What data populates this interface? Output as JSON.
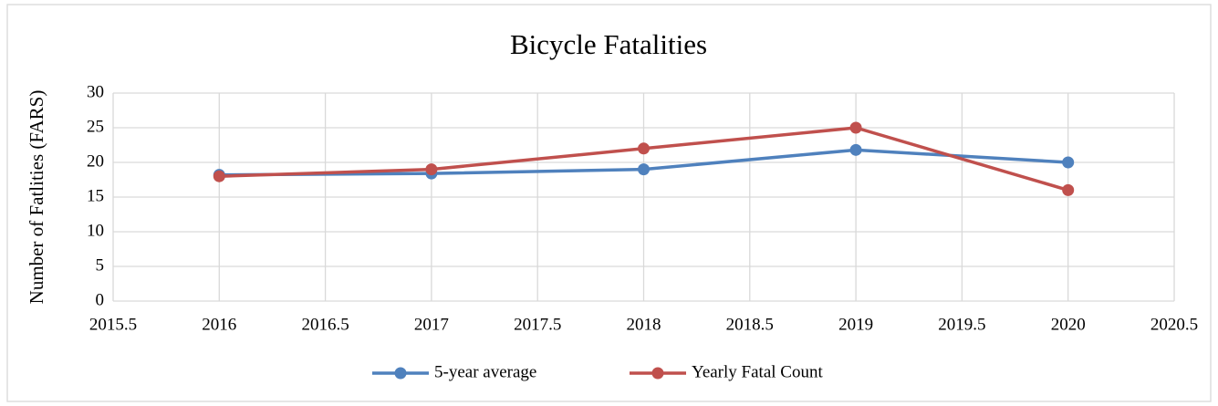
{
  "chart_data": {
    "type": "line",
    "title": "Bicycle Fatalities",
    "y_label": "Number of Fatlities (FARS)",
    "x": [
      2016,
      2017,
      2018,
      2019,
      2020
    ],
    "series": [
      {
        "name": "5-year average",
        "color": "#4f81bd",
        "values": [
          18.2,
          18.4,
          19,
          21.8,
          20
        ]
      },
      {
        "name": "Yearly Fatal Count",
        "color": "#c0504d",
        "values": [
          18,
          19,
          22,
          25,
          16
        ]
      }
    ],
    "xlim": [
      2015.5,
      2020.5
    ],
    "xticks": [
      2015.5,
      2016,
      2016.5,
      2017,
      2017.5,
      2018,
      2018.5,
      2019,
      2019.5,
      2020,
      2020.5
    ],
    "ylim": [
      0,
      30
    ],
    "yticks": [
      0,
      5,
      10,
      15,
      20,
      25,
      30
    ],
    "grid": true,
    "legend": "bottom"
  }
}
